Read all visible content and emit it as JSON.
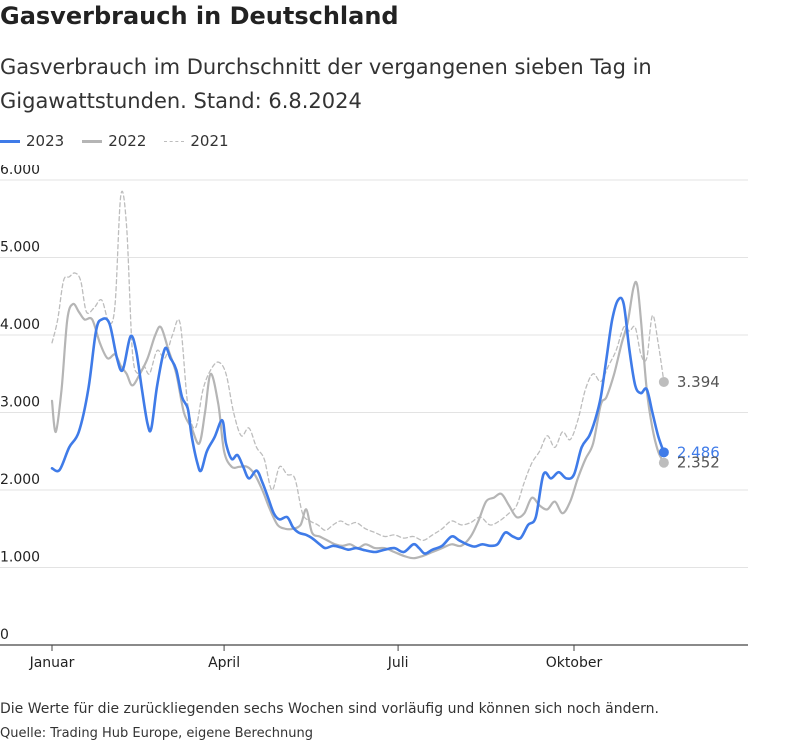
{
  "title": "Gasverbrauch in Deutschland",
  "subtitle": "Gasverbrauch im Durchschnitt der vergangenen sieben Tag in Gigawattstunden. Stand: 6.8.2024",
  "legend": [
    {
      "label": "2023",
      "style": "solid",
      "color": "#3f7be8"
    },
    {
      "label": "2022",
      "style": "solid",
      "color": "#b5b5b5"
    },
    {
      "label": "2021",
      "style": "dashed",
      "color": "#bdbdbd"
    }
  ],
  "footnote": "Die Werte für die zurückliegenden sechs Wochen sind vorläufig und können sich noch ändern.",
  "source": "Quelle: Trading Hub Europe, eigene Berechnung",
  "chart_data": {
    "type": "line",
    "title": "Gasverbrauch in Deutschland",
    "subtitle": "Gasverbrauch im Durchschnitt der vergangenen sieben Tag in Gigawattstunden. Stand: 6.8.2024",
    "xlabel": "",
    "ylabel": "",
    "x_unit": "day of year",
    "xlim": [
      1,
      365
    ],
    "ylim": [
      0,
      6000
    ],
    "y_ticks": [
      0,
      1000,
      2000,
      3000,
      4000,
      5000,
      6000
    ],
    "y_tick_labels": [
      "0",
      "1.000",
      "2.000",
      "3.000",
      "4.000",
      "5.000",
      "6.000"
    ],
    "x_ticks": [
      1,
      91,
      182,
      274
    ],
    "x_tick_labels": [
      "Januar",
      "April",
      "Juli",
      "Oktober"
    ],
    "grid": true,
    "legend_position": "top-left",
    "series": [
      {
        "name": "2023",
        "color": "#3f7be8",
        "dash": false,
        "width": 2.6,
        "end_label": "2.486",
        "points": [
          [
            1,
            2280
          ],
          [
            5,
            2260
          ],
          [
            10,
            2550
          ],
          [
            15,
            2750
          ],
          [
            20,
            3300
          ],
          [
            24,
            4050
          ],
          [
            27,
            4200
          ],
          [
            31,
            4150
          ],
          [
            35,
            3700
          ],
          [
            38,
            3550
          ],
          [
            42,
            3980
          ],
          [
            45,
            3800
          ],
          [
            48,
            3300
          ],
          [
            51,
            2850
          ],
          [
            53,
            2800
          ],
          [
            56,
            3350
          ],
          [
            60,
            3820
          ],
          [
            63,
            3700
          ],
          [
            66,
            3550
          ],
          [
            69,
            3200
          ],
          [
            72,
            3050
          ],
          [
            74,
            2700
          ],
          [
            77,
            2350
          ],
          [
            79,
            2250
          ],
          [
            82,
            2500
          ],
          [
            86,
            2680
          ],
          [
            90,
            2900
          ],
          [
            92,
            2600
          ],
          [
            95,
            2400
          ],
          [
            98,
            2450
          ],
          [
            101,
            2300
          ],
          [
            104,
            2150
          ],
          [
            108,
            2250
          ],
          [
            111,
            2100
          ],
          [
            114,
            1900
          ],
          [
            117,
            1700
          ],
          [
            120,
            1620
          ],
          [
            124,
            1650
          ],
          [
            127,
            1520
          ],
          [
            130,
            1450
          ],
          [
            134,
            1420
          ],
          [
            137,
            1380
          ],
          [
            141,
            1300
          ],
          [
            144,
            1250
          ],
          [
            148,
            1280
          ],
          [
            152,
            1260
          ],
          [
            156,
            1230
          ],
          [
            160,
            1250
          ],
          [
            165,
            1220
          ],
          [
            170,
            1200
          ],
          [
            175,
            1230
          ],
          [
            180,
            1250
          ],
          [
            185,
            1200
          ],
          [
            190,
            1300
          ],
          [
            193,
            1250
          ],
          [
            196,
            1180
          ],
          [
            200,
            1230
          ],
          [
            205,
            1280
          ],
          [
            210,
            1400
          ],
          [
            214,
            1350
          ],
          [
            218,
            1300
          ],
          [
            222,
            1270
          ],
          [
            226,
            1300
          ],
          [
            230,
            1280
          ],
          [
            234,
            1300
          ],
          [
            238,
            1450
          ],
          [
            242,
            1400
          ],
          [
            246,
            1380
          ],
          [
            250,
            1550
          ],
          [
            254,
            1650
          ],
          [
            258,
            2200
          ],
          [
            262,
            2150
          ],
          [
            266,
            2230
          ],
          [
            270,
            2150
          ],
          [
            274,
            2200
          ],
          [
            278,
            2550
          ],
          [
            282,
            2700
          ],
          [
            285,
            2900
          ],
          [
            288,
            3200
          ],
          [
            291,
            3700
          ],
          [
            294,
            4200
          ],
          [
            297,
            4450
          ],
          [
            300,
            4400
          ],
          [
            303,
            3800
          ],
          [
            306,
            3350
          ],
          [
            309,
            3250
          ],
          [
            312,
            3300
          ],
          [
            315,
            3000
          ],
          [
            318,
            2700
          ],
          [
            321,
            2486
          ]
        ]
      },
      {
        "name": "2022",
        "color": "#b5b5b5",
        "dash": false,
        "width": 2.2,
        "end_label": "2.352",
        "points": [
          [
            1,
            3150
          ],
          [
            3,
            2750
          ],
          [
            6,
            3300
          ],
          [
            9,
            4200
          ],
          [
            12,
            4400
          ],
          [
            15,
            4300
          ],
          [
            18,
            4200
          ],
          [
            22,
            4200
          ],
          [
            26,
            3900
          ],
          [
            30,
            3700
          ],
          [
            34,
            3750
          ],
          [
            37,
            3600
          ],
          [
            40,
            3500
          ],
          [
            43,
            3350
          ],
          [
            47,
            3500
          ],
          [
            51,
            3700
          ],
          [
            55,
            4000
          ],
          [
            58,
            4100
          ],
          [
            62,
            3800
          ],
          [
            66,
            3500
          ],
          [
            70,
            3000
          ],
          [
            74,
            2800
          ],
          [
            78,
            2600
          ],
          [
            81,
            3000
          ],
          [
            84,
            3500
          ],
          [
            88,
            3100
          ],
          [
            91,
            2500
          ],
          [
            95,
            2300
          ],
          [
            99,
            2300
          ],
          [
            103,
            2300
          ],
          [
            107,
            2200
          ],
          [
            111,
            2000
          ],
          [
            115,
            1750
          ],
          [
            119,
            1550
          ],
          [
            123,
            1500
          ],
          [
            127,
            1500
          ],
          [
            131,
            1550
          ],
          [
            134,
            1750
          ],
          [
            137,
            1450
          ],
          [
            141,
            1400
          ],
          [
            145,
            1350
          ],
          [
            149,
            1300
          ],
          [
            153,
            1280
          ],
          [
            157,
            1300
          ],
          [
            161,
            1250
          ],
          [
            165,
            1300
          ],
          [
            170,
            1250
          ],
          [
            175,
            1250
          ],
          [
            180,
            1200
          ],
          [
            185,
            1150
          ],
          [
            190,
            1120
          ],
          [
            195,
            1150
          ],
          [
            200,
            1200
          ],
          [
            205,
            1250
          ],
          [
            210,
            1300
          ],
          [
            215,
            1280
          ],
          [
            220,
            1400
          ],
          [
            224,
            1600
          ],
          [
            228,
            1850
          ],
          [
            232,
            1900
          ],
          [
            236,
            1950
          ],
          [
            240,
            1800
          ],
          [
            244,
            1650
          ],
          [
            248,
            1700
          ],
          [
            252,
            1900
          ],
          [
            256,
            1800
          ],
          [
            260,
            1750
          ],
          [
            264,
            1850
          ],
          [
            268,
            1700
          ],
          [
            272,
            1850
          ],
          [
            276,
            2150
          ],
          [
            280,
            2400
          ],
          [
            284,
            2600
          ],
          [
            288,
            3100
          ],
          [
            291,
            3200
          ],
          [
            295,
            3500
          ],
          [
            299,
            3900
          ],
          [
            302,
            4150
          ],
          [
            305,
            4600
          ],
          [
            307,
            4650
          ],
          [
            309,
            4200
          ],
          [
            312,
            3300
          ],
          [
            315,
            2800
          ],
          [
            318,
            2500
          ],
          [
            321,
            2352
          ]
        ]
      },
      {
        "name": "2021",
        "color": "#bdbdbd",
        "dash": true,
        "width": 1.3,
        "end_label": "3.394",
        "points": [
          [
            1,
            3900
          ],
          [
            4,
            4200
          ],
          [
            7,
            4700
          ],
          [
            10,
            4750
          ],
          [
            13,
            4800
          ],
          [
            16,
            4700
          ],
          [
            19,
            4300
          ],
          [
            23,
            4350
          ],
          [
            27,
            4450
          ],
          [
            31,
            4150
          ],
          [
            34,
            4400
          ],
          [
            37,
            5800
          ],
          [
            40,
            5400
          ],
          [
            43,
            3800
          ],
          [
            46,
            3500
          ],
          [
            49,
            3600
          ],
          [
            52,
            3500
          ],
          [
            56,
            3800
          ],
          [
            60,
            3700
          ],
          [
            64,
            4000
          ],
          [
            68,
            4150
          ],
          [
            72,
            3100
          ],
          [
            76,
            2800
          ],
          [
            80,
            3300
          ],
          [
            84,
            3550
          ],
          [
            88,
            3650
          ],
          [
            92,
            3500
          ],
          [
            96,
            3000
          ],
          [
            100,
            2700
          ],
          [
            104,
            2800
          ],
          [
            108,
            2550
          ],
          [
            112,
            2400
          ],
          [
            116,
            2000
          ],
          [
            120,
            2300
          ],
          [
            124,
            2200
          ],
          [
            128,
            2150
          ],
          [
            132,
            1700
          ],
          [
            136,
            1600
          ],
          [
            140,
            1550
          ],
          [
            144,
            1480
          ],
          [
            148,
            1550
          ],
          [
            152,
            1600
          ],
          [
            156,
            1550
          ],
          [
            160,
            1580
          ],
          [
            165,
            1500
          ],
          [
            170,
            1450
          ],
          [
            175,
            1400
          ],
          [
            180,
            1420
          ],
          [
            185,
            1380
          ],
          [
            190,
            1400
          ],
          [
            195,
            1350
          ],
          [
            200,
            1420
          ],
          [
            205,
            1500
          ],
          [
            210,
            1600
          ],
          [
            215,
            1550
          ],
          [
            220,
            1580
          ],
          [
            225,
            1650
          ],
          [
            230,
            1550
          ],
          [
            235,
            1600
          ],
          [
            240,
            1700
          ],
          [
            244,
            1800
          ],
          [
            248,
            2100
          ],
          [
            252,
            2350
          ],
          [
            256,
            2500
          ],
          [
            260,
            2700
          ],
          [
            264,
            2550
          ],
          [
            268,
            2750
          ],
          [
            272,
            2650
          ],
          [
            276,
            2900
          ],
          [
            280,
            3300
          ],
          [
            284,
            3500
          ],
          [
            288,
            3400
          ],
          [
            292,
            3600
          ],
          [
            296,
            3800
          ],
          [
            300,
            4100
          ],
          [
            303,
            4050
          ],
          [
            306,
            4100
          ],
          [
            309,
            3750
          ],
          [
            312,
            3700
          ],
          [
            315,
            4250
          ],
          [
            318,
            3900
          ],
          [
            321,
            3394
          ]
        ]
      }
    ]
  }
}
